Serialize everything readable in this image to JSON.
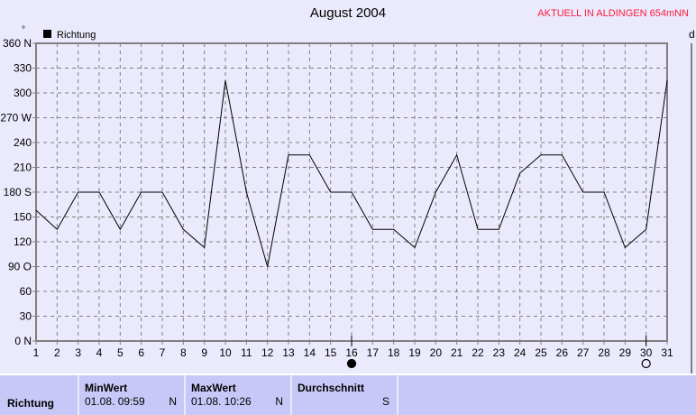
{
  "title": "August 2004",
  "station": "AKTUELL IN ALDINGEN 654mNN",
  "right_panel_label": "d",
  "chart_data": {
    "type": "line",
    "title": "August 2004",
    "ylabel": "°",
    "legend": {
      "entries": [
        "Richtung"
      ],
      "placement": "top-left"
    },
    "x": [
      1,
      2,
      3,
      4,
      5,
      6,
      7,
      8,
      9,
      10,
      11,
      12,
      13,
      14,
      15,
      16,
      17,
      18,
      19,
      20,
      21,
      22,
      23,
      24,
      25,
      26,
      27,
      28,
      29,
      30,
      31
    ],
    "series": [
      {
        "name": "Richtung",
        "color": "#000000",
        "values": [
          158,
          135,
          180,
          180,
          135,
          180,
          180,
          135,
          113,
          315,
          180,
          90,
          225,
          225,
          180,
          180,
          135,
          135,
          113,
          180,
          225,
          135,
          135,
          203,
          225,
          225,
          180,
          180,
          113,
          135,
          315
        ]
      }
    ],
    "xlim": [
      1,
      31
    ],
    "ylim": [
      0,
      360
    ],
    "yticks": [
      0,
      30,
      60,
      90,
      120,
      150,
      180,
      210,
      240,
      270,
      300,
      330,
      360
    ],
    "ytick_labels": [
      "0    N",
      "30",
      "60",
      "90   O",
      "120",
      "150",
      "180 S",
      "210",
      "240",
      "270 W",
      "300",
      "330",
      "360 N"
    ],
    "grid": true,
    "moon_phases": [
      {
        "day": 16,
        "phase": "full-moon-filled"
      },
      {
        "day": 30,
        "phase": "new-moon-outline"
      }
    ]
  },
  "table": {
    "row_label": "Richtung",
    "columns": [
      {
        "header": "MinWert",
        "date": "01.08.  09:59",
        "value": "N"
      },
      {
        "header": "MaxWert",
        "date": "01.08.  10:26",
        "value": "N"
      },
      {
        "header": "Durchschnitt",
        "date": "",
        "value": "S"
      }
    ]
  }
}
